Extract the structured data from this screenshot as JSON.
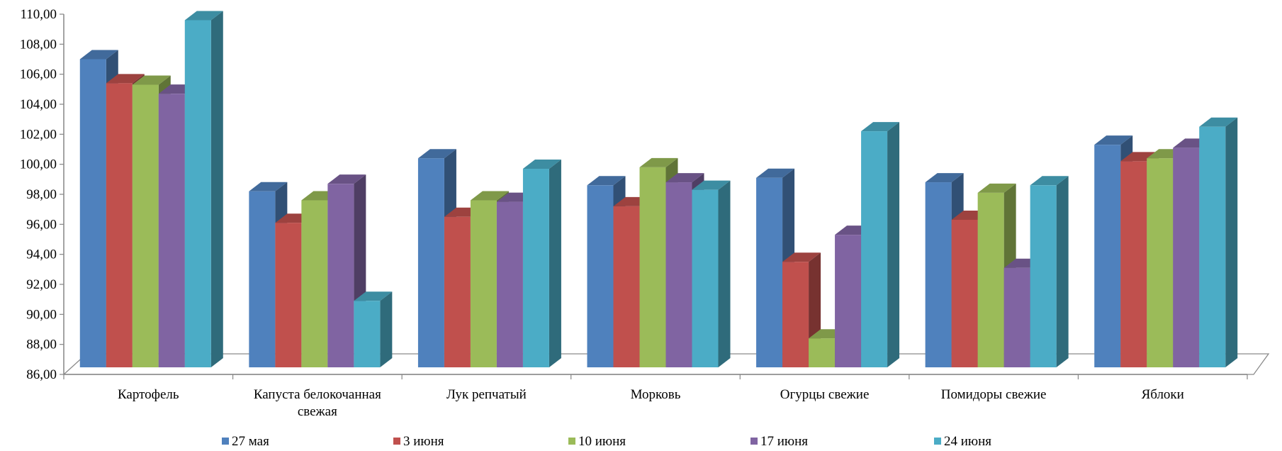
{
  "chart_data": {
    "type": "bar",
    "title": "",
    "xlabel": "",
    "ylabel": "",
    "ylim": [
      86,
      110
    ],
    "y_ticks": [
      "86,00",
      "88,00",
      "90,00",
      "92,00",
      "94,00",
      "96,00",
      "98,00",
      "100,00",
      "102,00",
      "104,00",
      "106,00",
      "108,00",
      "110,00"
    ],
    "categories": [
      [
        "Картофель"
      ],
      [
        "Капуста белокочанная",
        "свежая"
      ],
      [
        "Лук репчатый"
      ],
      [
        "Морковь"
      ],
      [
        "Огурцы свежие"
      ],
      [
        "Помидоры свежие"
      ],
      [
        "Яблоки"
      ]
    ],
    "series": [
      {
        "name": "27 мая",
        "color": "#4F81BD",
        "values": [
          107.0,
          98.2,
          100.4,
          98.6,
          99.1,
          98.8,
          101.3
        ]
      },
      {
        "name": "3 июня",
        "color": "#C0504D",
        "values": [
          105.4,
          96.1,
          96.5,
          97.2,
          93.5,
          96.3,
          100.2
        ]
      },
      {
        "name": "10 июня",
        "color": "#9BBB59",
        "values": [
          105.3,
          97.6,
          97.6,
          99.8,
          88.4,
          98.1,
          100.4
        ]
      },
      {
        "name": "17 июня",
        "color": "#8064A2",
        "values": [
          104.7,
          98.7,
          97.5,
          98.8,
          95.3,
          93.1,
          101.1
        ]
      },
      {
        "name": "24 июня",
        "color": "#4BACC6",
        "values": [
          109.6,
          90.9,
          99.7,
          98.3,
          102.2,
          98.6,
          102.5
        ]
      }
    ],
    "grid": false,
    "legend": "bottom"
  }
}
